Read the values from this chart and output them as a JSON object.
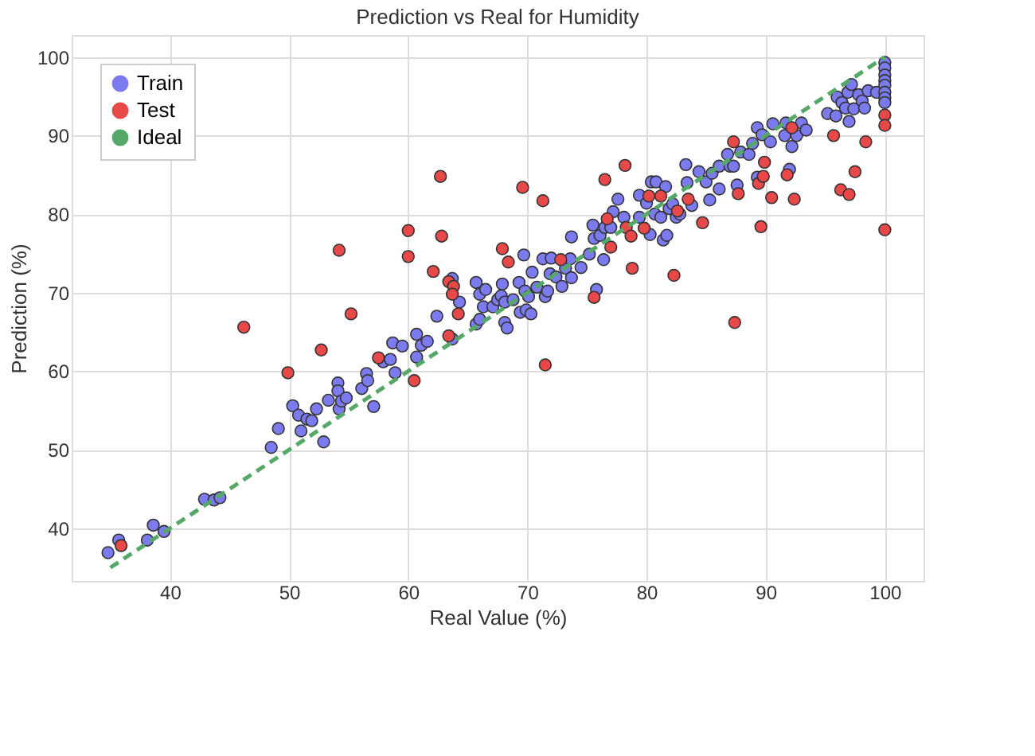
{
  "chart_data": {
    "type": "scatter",
    "title": "Prediction vs Real for Humidity",
    "xlabel": "Real Value (%)",
    "ylabel": "Prediction  (%)",
    "xlim": [
      31.75,
      103.25
    ],
    "ylim": [
      33.3,
      102.8
    ],
    "xticks": [
      40,
      50,
      60,
      70,
      80,
      90,
      100
    ],
    "yticks": [
      40,
      50,
      60,
      70,
      80,
      90,
      100
    ],
    "grid": true,
    "legend": "top left",
    "series": [
      {
        "name": "Train",
        "color": "#7b7bef",
        "marker": "circle",
        "x": [
          34.8,
          35.7,
          38.1,
          38.6,
          39.5,
          42.9,
          43.7,
          44.2,
          48.5,
          49.1,
          50.3,
          50.8,
          51.0,
          51.5,
          51.9,
          52.3,
          52.9,
          53.3,
          54.1,
          54.1,
          54.2,
          54.4,
          54.8,
          56.1,
          56.5,
          56.6,
          57.1,
          57.9,
          58.5,
          58.7,
          58.9,
          59.5,
          60.7,
          60.7,
          61.1,
          61.6,
          62.4,
          63.7,
          63.7,
          64.3,
          65.7,
          65.7,
          66.0,
          66.0,
          66.3,
          66.5,
          67.1,
          67.5,
          67.8,
          67.9,
          68.1,
          68.3,
          68.1,
          68.8,
          69.3,
          69.4,
          69.7,
          69.8,
          69.9,
          70.1,
          70.3,
          70.4,
          70.8,
          71.3,
          71.5,
          71.7,
          72.0,
          71.9,
          72.4,
          72.9,
          73.2,
          73.6,
          73.7,
          73.7,
          74.5,
          75.2,
          75.5,
          75.6,
          75.8,
          76.1,
          76.4,
          76.5,
          77.0,
          77.2,
          77.6,
          78.1,
          79.4,
          79.4,
          80.0,
          80.3,
          80.4,
          80.7,
          80.8,
          81.2,
          81.4,
          81.6,
          81.7,
          81.9,
          82.2,
          82.5,
          82.8,
          83.3,
          83.4,
          83.8,
          84.4,
          85.0,
          85.3,
          85.5,
          86.1,
          86.1,
          86.8,
          87.0,
          87.3,
          87.6,
          87.9,
          88.6,
          88.9,
          89.3,
          89.3,
          89.7,
          90.4,
          90.6,
          91.6,
          91.7,
          92.0,
          92.2,
          92.6,
          93.0,
          93.4,
          95.2,
          96.0,
          95.9,
          96.4,
          96.7,
          96.9,
          97.0,
          97.2,
          97.4,
          97.8,
          98.1,
          98.3,
          98.6,
          99.3,
          100,
          100,
          100,
          100,
          100,
          100,
          100,
          100
        ],
        "values": [
          36.9,
          38.5,
          38.5,
          40.4,
          39.6,
          43.7,
          43.6,
          43.9,
          50.3,
          52.7,
          55.6,
          54.4,
          52.4,
          53.9,
          53.7,
          55.2,
          51.0,
          56.3,
          58.5,
          57.5,
          55.2,
          56.2,
          56.6,
          57.8,
          59.7,
          58.8,
          55.5,
          61.2,
          61.5,
          63.6,
          59.8,
          63.2,
          64.7,
          61.8,
          63.3,
          63.8,
          67.0,
          71.8,
          64.1,
          68.8,
          71.3,
          66.0,
          66.6,
          69.8,
          68.2,
          70.4,
          68.2,
          69.1,
          69.6,
          71.1,
          66.2,
          65.5,
          68.8,
          69.1,
          71.3,
          67.5,
          74.8,
          70.2,
          67.8,
          69.5,
          67.3,
          72.6,
          70.7,
          74.3,
          69.5,
          70.2,
          74.4,
          72.4,
          72.0,
          70.8,
          73.1,
          74.3,
          77.1,
          71.9,
          73.2,
          74.9,
          78.6,
          76.9,
          70.4,
          77.3,
          74.2,
          78.3,
          78.3,
          80.3,
          81.9,
          79.6,
          79.6,
          82.4,
          81.4,
          77.4,
          84.1,
          80.0,
          84.1,
          79.6,
          76.7,
          83.5,
          77.3,
          80.7,
          81.3,
          79.6,
          80.0,
          86.3,
          84.0,
          81.1,
          85.4,
          84.1,
          81.8,
          85.2,
          83.2,
          86.1,
          87.6,
          86.1,
          86.1,
          83.7,
          87.9,
          87.6,
          89.0,
          84.7,
          91.0,
          90.1,
          89.2,
          91.5,
          90.0,
          91.6,
          85.7,
          88.6,
          90.0,
          91.6,
          90.7,
          92.8,
          94.9,
          92.5,
          94.2,
          93.5,
          95.5,
          91.8,
          96.5,
          93.4,
          95.2,
          94.4,
          93.5,
          95.7,
          95.5,
          99.3,
          98.6,
          97.7,
          97.0,
          96.4,
          95.5,
          94.8,
          94.2
        ]
      },
      {
        "name": "Test",
        "color": "#e84848",
        "marker": "circle",
        "x": [
          35.9,
          46.2,
          49.9,
          52.7,
          54.2,
          55.2,
          57.5,
          60.0,
          60.0,
          60.5,
          62.1,
          62.7,
          62.8,
          63.4,
          63.8,
          63.7,
          64.2,
          63.4,
          67.9,
          68.4,
          69.6,
          71.3,
          71.5,
          72.8,
          75.6,
          76.5,
          76.7,
          77.0,
          78.2,
          78.3,
          78.7,
          78.8,
          79.8,
          80.2,
          81.2,
          82.3,
          82.6,
          83.5,
          84.7,
          87.3,
          87.4,
          87.7,
          89.6,
          89.4,
          89.8,
          89.9,
          90.5,
          91.8,
          92.2,
          92.4,
          95.7,
          96.3,
          97.0,
          97.5,
          98.4,
          100,
          100,
          100
        ],
        "values": [
          37.8,
          65.6,
          59.8,
          62.7,
          75.4,
          67.3,
          61.7,
          77.9,
          74.6,
          58.8,
          72.7,
          84.8,
          77.2,
          71.4,
          70.8,
          69.8,
          67.3,
          64.5,
          75.6,
          73.9,
          83.4,
          81.7,
          60.8,
          74.2,
          69.4,
          84.4,
          79.4,
          75.8,
          86.2,
          78.3,
          77.2,
          73.1,
          78.2,
          82.3,
          82.3,
          72.2,
          80.4,
          81.9,
          78.9,
          89.2,
          66.2,
          82.6,
          78.4,
          83.9,
          84.8,
          86.6,
          82.1,
          85.0,
          91.0,
          81.9,
          90.0,
          83.1,
          82.5,
          85.4,
          89.2,
          92.6,
          91.3,
          78.0
        ]
      },
      {
        "name": "Ideal",
        "color": "#55a868",
        "type": "line",
        "marker": "none",
        "line_style": "dashed",
        "x": [
          35,
          100
        ],
        "values": [
          35,
          100
        ]
      }
    ]
  }
}
